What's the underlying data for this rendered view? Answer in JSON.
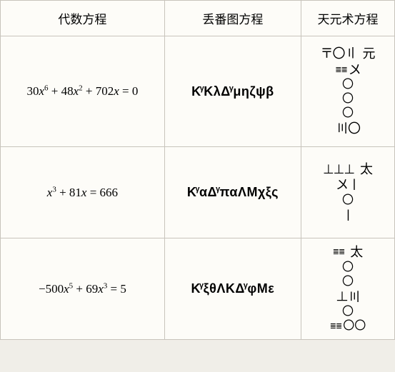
{
  "headers": {
    "col1": "代数方程",
    "col2": "丢番图方程",
    "col3": "天元术方程"
  },
  "rows": [
    {
      "algebraic_html": "30<span class='var'>x</span><sup>6</sup> + 48<span class='var'>x</span><sup>2</sup> + 702<span class='var'>x</span> = 0",
      "diophantine": "K<sup>γ</sup>KλΔ<sup>γ</sup>μηζψβ",
      "tianyuan_lines": [
        {
          "content": "<span class='hstack'><span class='rod'>〒〇〢</span><span class='label'>元</span></span>"
        },
        {
          "content": "<span class='vbars'>≣≣</span><span class='rod' style='margin-left:2px;'>〤</span>"
        },
        {
          "content": "<span class='circle'>〇</span>"
        },
        {
          "content": "<span class='circle'>〇</span>"
        },
        {
          "content": "<span class='circle'>〇</span>"
        },
        {
          "content": "<span class='hstack'><span class='rod'>〣〇</span></span>"
        }
      ]
    },
    {
      "algebraic_html": "<span class='var'>x</span><sup>3</sup> + 81<span class='var'>x</span> = 666",
      "diophantine": "K<sup>γ</sup>αΔ<sup>γ</sup>παΛΜχξς",
      "tianyuan_lines": [
        {
          "content": "<span class='hstack'><span class='rod'>⊥⊥⊥</span><span class='label'>太</span></span>"
        },
        {
          "content": "<span class='hstack'><span class='rod'>〤〡</span></span>"
        },
        {
          "content": "<span class='circle'>〇</span>"
        },
        {
          "content": "<span class='rod'>〡</span>"
        }
      ]
    },
    {
      "algebraic_html": "−500<span class='var'>x</span><sup>5</sup> + 69<span class='var'>x</span><sup>3</sup> = 5",
      "diophantine": "K<sup>γ</sup>ξθΛΚΔ<sup>γ</sup>φΜε",
      "tianyuan_lines": [
        {
          "content": "<span class='hstack'><span class='vbars'>≣≣</span><span class='label'>太</span></span>"
        },
        {
          "content": "<span class='circle'>〇</span>"
        },
        {
          "content": "<span class='circle'>〇</span>"
        },
        {
          "content": "<span class='hstack'><span class='rod'>⊥〣</span></span>"
        },
        {
          "content": "<span class='circle'>〇</span>"
        },
        {
          "content": "<span class='hstack'><span class='vbars'>≣≣</span><span class='circle'>〇〇</span></span>"
        }
      ]
    }
  ],
  "colors": {
    "bg": "#fdfcf8",
    "border": "#c8c4bc",
    "text": "#000000"
  }
}
